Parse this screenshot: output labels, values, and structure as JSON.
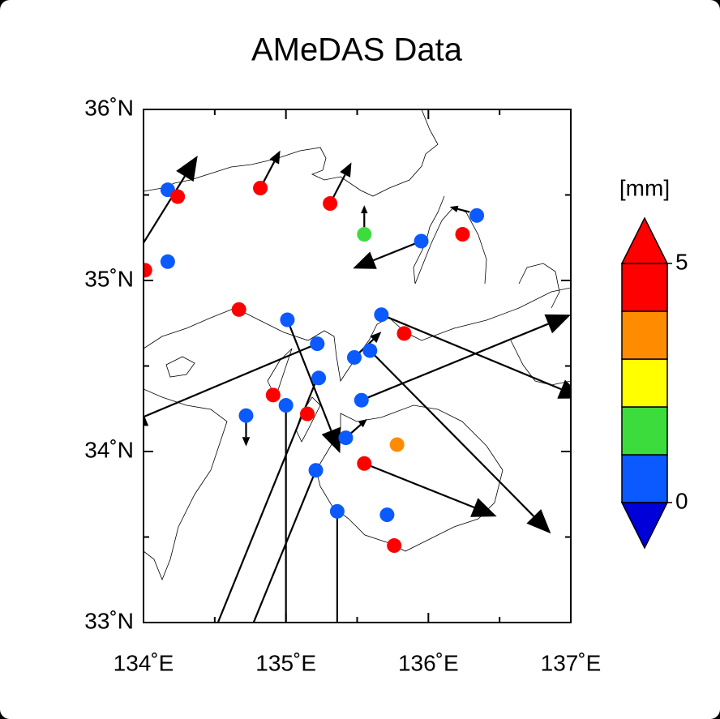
{
  "chart_data": {
    "type": "map",
    "title": "AMeDAS Data",
    "xlim": [
      134,
      137
    ],
    "ylim": [
      33,
      36
    ],
    "xticks": [
      {
        "value": 134,
        "label": "134˚E"
      },
      {
        "value": 135,
        "label": "135˚E"
      },
      {
        "value": 136,
        "label": "136˚E"
      },
      {
        "value": 137,
        "label": "137˚E"
      }
    ],
    "yticks": [
      {
        "value": 33,
        "label": "33˚N"
      },
      {
        "value": 34,
        "label": "34˚N"
      },
      {
        "value": 35,
        "label": "35˚N"
      },
      {
        "value": 36,
        "label": "36˚N"
      }
    ],
    "xminorticks": [
      134.5,
      135.5,
      136.5
    ],
    "yminorticks": [
      33.5,
      34.5,
      35.5
    ],
    "colorbar": {
      "title": "[mm]",
      "levels": [
        0,
        1,
        2,
        3,
        4,
        5
      ],
      "colors": [
        "#0a5aff",
        "#3ddc3d",
        "#ffff00",
        "#ff8c00",
        "#ff0000"
      ],
      "under_color": "#0000d8",
      "over_color": "#ff0000",
      "ticks": [
        0,
        5
      ]
    },
    "stations": [
      {
        "lon": 134.17,
        "lat": 35.53,
        "value": 0.5
      },
      {
        "lon": 134.24,
        "lat": 35.49,
        "value": 4.5
      },
      {
        "lon": 134.01,
        "lat": 35.06,
        "value": 4.5
      },
      {
        "lon": 134.17,
        "lat": 35.11,
        "value": 0.5
      },
      {
        "lon": 134.82,
        "lat": 35.54,
        "value": 4.5
      },
      {
        "lon": 135.31,
        "lat": 35.45,
        "value": 4.5
      },
      {
        "lon": 135.55,
        "lat": 35.27,
        "value": 1.5
      },
      {
        "lon": 135.95,
        "lat": 35.23,
        "value": 0.5
      },
      {
        "lon": 136.24,
        "lat": 35.27,
        "value": 4.5
      },
      {
        "lon": 136.34,
        "lat": 35.38,
        "value": 0.5
      },
      {
        "lon": 134.67,
        "lat": 34.83,
        "value": 4.5
      },
      {
        "lon": 135.01,
        "lat": 34.77,
        "value": 0.5
      },
      {
        "lon": 135.67,
        "lat": 34.8,
        "value": 0.5
      },
      {
        "lon": 135.83,
        "lat": 34.69,
        "value": 4.5
      },
      {
        "lon": 135.22,
        "lat": 34.63,
        "value": 0.5
      },
      {
        "lon": 135.48,
        "lat": 34.55,
        "value": 0.5
      },
      {
        "lon": 135.59,
        "lat": 34.59,
        "value": 0.5
      },
      {
        "lon": 135.23,
        "lat": 34.43,
        "value": 0.5
      },
      {
        "lon": 134.91,
        "lat": 34.33,
        "value": 4.5
      },
      {
        "lon": 135.53,
        "lat": 34.3,
        "value": 0.5
      },
      {
        "lon": 134.72,
        "lat": 34.21,
        "value": 0.5
      },
      {
        "lon": 135.0,
        "lat": 34.27,
        "value": 0.5
      },
      {
        "lon": 135.15,
        "lat": 34.22,
        "value": 4.5
      },
      {
        "lon": 135.42,
        "lat": 34.08,
        "value": 0.5
      },
      {
        "lon": 135.78,
        "lat": 34.04,
        "value": 3.5
      },
      {
        "lon": 135.55,
        "lat": 33.93,
        "value": 4.5
      },
      {
        "lon": 135.21,
        "lat": 33.89,
        "value": 0.5
      },
      {
        "lon": 135.36,
        "lat": 33.65,
        "value": 0.5
      },
      {
        "lon": 135.71,
        "lat": 33.63,
        "value": 0.5
      },
      {
        "lon": 135.76,
        "lat": 33.45,
        "value": 4.5
      }
    ],
    "vectors": [
      {
        "from": [
          134.0,
          35.22
        ],
        "to": [
          134.38,
          35.73
        ]
      },
      {
        "from": [
          134.82,
          35.54
        ],
        "to": [
          134.96,
          35.76
        ]
      },
      {
        "from": [
          135.31,
          35.45
        ],
        "to": [
          135.46,
          35.69
        ]
      },
      {
        "from": [
          135.55,
          35.31
        ],
        "to": [
          135.55,
          35.44
        ]
      },
      {
        "from": [
          135.95,
          35.23
        ],
        "to": [
          135.47,
          35.07
        ]
      },
      {
        "from": [
          136.29,
          35.4
        ],
        "to": [
          136.15,
          35.43
        ]
      },
      {
        "from": [
          135.67,
          34.8
        ],
        "to": [
          137.09,
          34.31
        ]
      },
      {
        "from": [
          135.22,
          34.63
        ],
        "to": [
          133.85,
          34.15
        ]
      },
      {
        "from": [
          135.53,
          34.3
        ],
        "to": [
          137.0,
          34.8
        ]
      },
      {
        "from": [
          135.01,
          34.77
        ],
        "to": [
          135.38,
          33.99
        ]
      },
      {
        "from": [
          135.59,
          34.59
        ],
        "to": [
          136.86,
          33.52
        ]
      },
      {
        "from": [
          135.48,
          34.55
        ],
        "to": [
          135.67,
          34.7
        ]
      },
      {
        "from": [
          135.42,
          34.08
        ],
        "to": [
          135.57,
          34.19
        ]
      },
      {
        "from": [
          135.55,
          33.93
        ],
        "to": [
          136.48,
          33.62
        ]
      },
      {
        "from": [
          134.72,
          34.21
        ],
        "to": [
          134.72,
          34.03
        ]
      },
      {
        "from": [
          135.0,
          34.27
        ],
        "to": [
          135.0,
          32.71
        ]
      },
      {
        "from": [
          135.22,
          34.43
        ],
        "to": [
          134.42,
          32.79
        ]
      },
      {
        "from": [
          135.21,
          33.89
        ],
        "to": [
          134.64,
          32.73
        ]
      },
      {
        "from": [
          135.36,
          33.65
        ],
        "to": [
          135.36,
          32.75
        ]
      }
    ]
  }
}
